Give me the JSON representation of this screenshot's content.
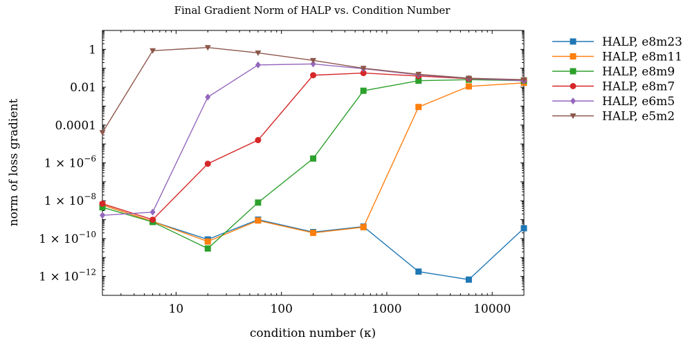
{
  "chart_data": {
    "type": "line",
    "title": "Final Gradient Norm of HALP vs. Condition Number",
    "xlabel": "condition number (κ)",
    "ylabel": "norm of loss gradient",
    "xscale": "log",
    "yscale": "log",
    "xlim": [
      2,
      20000
    ],
    "ylim": [
      1e-13,
      10
    ],
    "grid": false,
    "legend_position": "outside-right",
    "x_ticks": [
      {
        "value": 10,
        "label": "10"
      },
      {
        "value": 100,
        "label": "100"
      },
      {
        "value": 1000,
        "label": "1000"
      },
      {
        "value": 10000,
        "label": "10000"
      }
    ],
    "y_ticks": [
      {
        "value": 1,
        "label": "1"
      },
      {
        "value": 0.01,
        "label": "0.01"
      },
      {
        "value": 0.0001,
        "label": "0.0001"
      },
      {
        "value": 1e-06,
        "mantissa": "1 × 10",
        "exponent": "−6"
      },
      {
        "value": 1e-08,
        "mantissa": "1 × 10",
        "exponent": "−8"
      },
      {
        "value": 1e-10,
        "mantissa": "1 × 10",
        "exponent": "−10"
      },
      {
        "value": 1e-12,
        "mantissa": "1 × 10",
        "exponent": "−12"
      }
    ],
    "x": [
      2,
      6,
      20,
      60,
      200,
      600,
      2000,
      6000,
      20000
    ],
    "series": [
      {
        "name": "HALP, e8m23",
        "color": "#1f77b4",
        "marker": "square",
        "values": [
          6e-09,
          8e-10,
          9e-11,
          1e-09,
          2.2e-10,
          4.3e-10,
          1.8e-12,
          6.8e-13,
          3.5e-10
        ]
      },
      {
        "name": "HALP, e8m11",
        "color": "#ff7f0e",
        "marker": "square",
        "values": [
          6e-09,
          8e-10,
          7e-11,
          9e-10,
          2e-10,
          4e-10,
          0.0009,
          0.011,
          0.017
        ]
      },
      {
        "name": "HALP, e8m9",
        "color": "#2ca02c",
        "marker": "square",
        "values": [
          4.5e-09,
          7.5e-10,
          3e-11,
          8e-09,
          1.7e-06,
          0.0065,
          0.022,
          0.025,
          0.022
        ]
      },
      {
        "name": "HALP, e8m7",
        "color": "#d62728",
        "marker": "circle",
        "values": [
          7e-09,
          1e-09,
          9e-07,
          1.6e-05,
          0.043,
          0.056,
          0.039,
          0.028,
          0.023
        ]
      },
      {
        "name": "HALP, e6m5",
        "color": "#9467bd",
        "marker": "diamond",
        "values": [
          1.7e-09,
          2.5e-09,
          0.003,
          0.15,
          0.17,
          0.095,
          0.045,
          0.029,
          0.022
        ]
      },
      {
        "name": "HALP, e5m2",
        "color": "#8c564b",
        "marker": "triangle-down",
        "values": [
          4e-05,
          0.85,
          1.25,
          0.65,
          0.26,
          0.1,
          0.048,
          0.03,
          0.025
        ]
      }
    ]
  }
}
